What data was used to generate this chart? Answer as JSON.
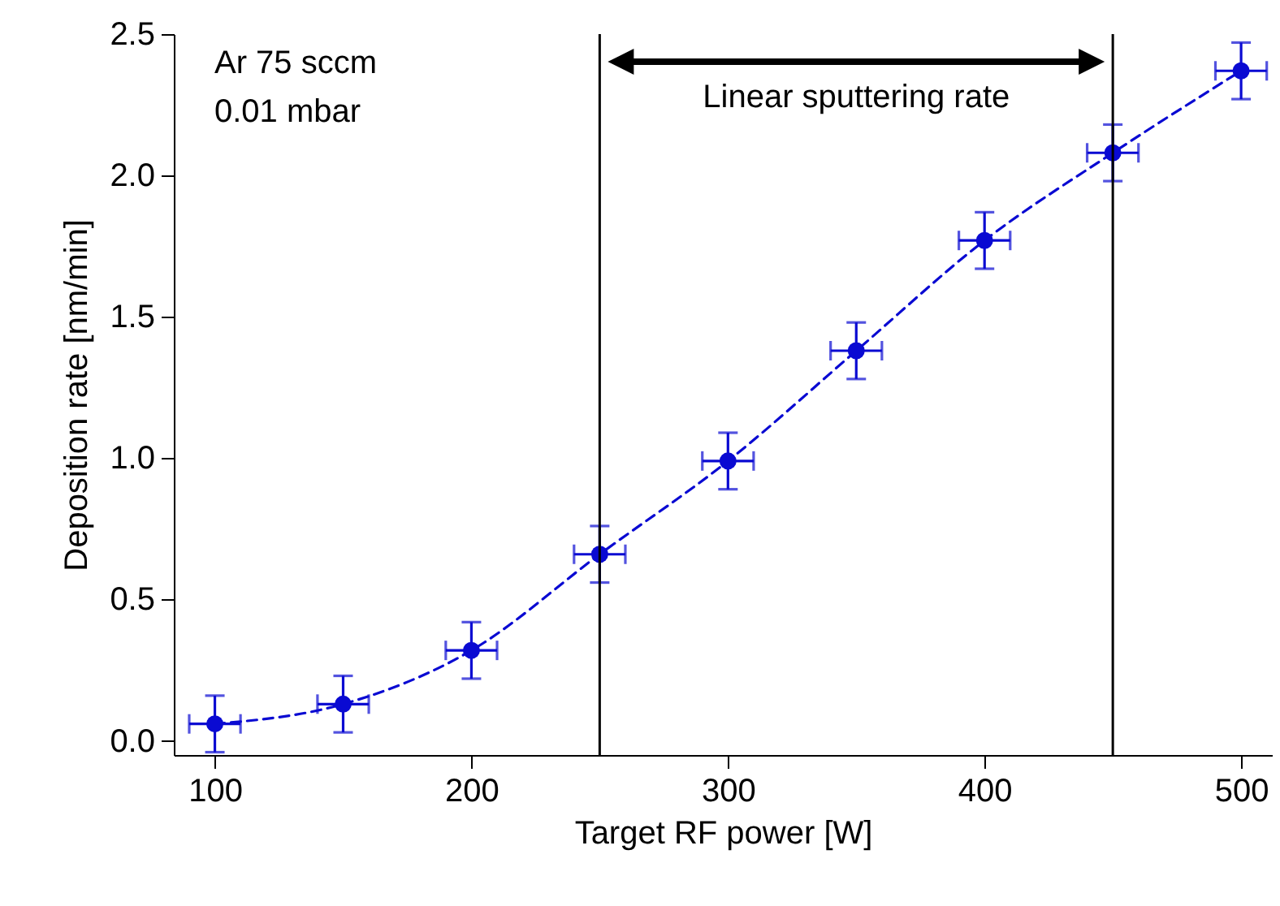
{
  "chart_data": {
    "type": "line",
    "xlabel": "Target RF power [W]",
    "ylabel": "Deposition rate [nm/min]",
    "x": [
      100,
      150,
      200,
      250,
      300,
      350,
      400,
      450,
      500
    ],
    "series": [
      {
        "color": "#0a0ad2",
        "values": [
          0.06,
          0.13,
          0.32,
          0.66,
          0.99,
          1.38,
          1.77,
          2.08,
          2.37
        ],
        "errors": [
          0.1,
          0.1,
          0.1,
          0.1,
          0.1,
          0.1,
          0.1,
          0.1,
          0.1
        ],
        "xerrors": [
          10,
          10,
          10,
          10,
          10,
          10,
          10,
          10,
          10
        ],
        "marker": "circle",
        "line_style": "dashed"
      }
    ],
    "xlim": [
      84,
      512
    ],
    "xticks": [
      100,
      200,
      300,
      400,
      500
    ],
    "ylim": [
      -0.05,
      2.5
    ],
    "yticks": [
      {
        "value": 0,
        "label": "0.0"
      },
      0.5,
      {
        "value": 1,
        "label": "1.0"
      },
      1.5,
      {
        "value": 2,
        "label": "2.0"
      },
      2.5
    ],
    "ref_lines": [
      {
        "axis": "x",
        "value": 250,
        "color": "#000000"
      },
      {
        "axis": "x",
        "value": 450,
        "color": "#000000"
      }
    ],
    "annotations": [
      "Ar 75 sccm",
      "0.01 mbar",
      "Linear sputtering rate"
    ],
    "grid": false
  }
}
